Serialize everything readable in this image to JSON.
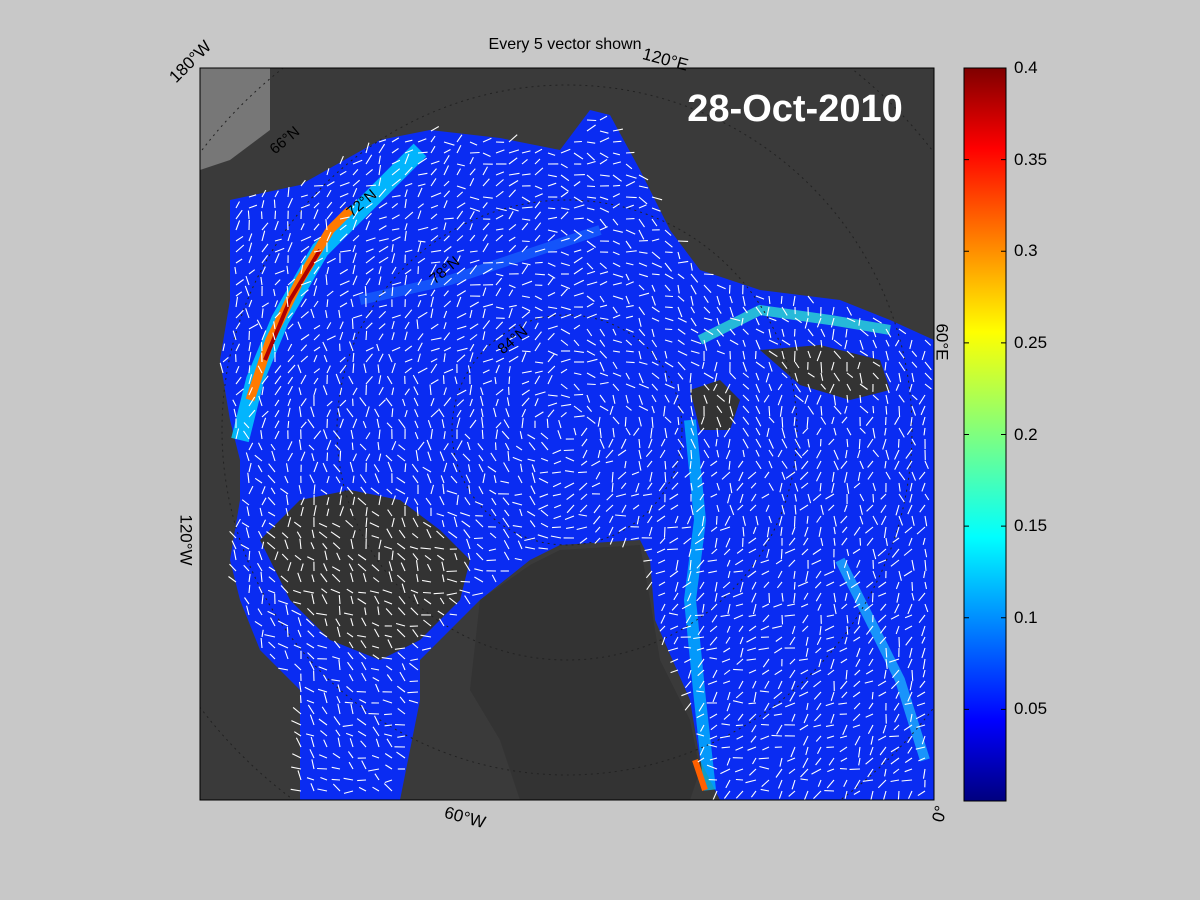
{
  "title": "Every 5 vector shown",
  "date": "28-Oct-2010",
  "longitude_labels": [
    "180°W",
    "120°E",
    "60°E",
    "0°",
    "60°W",
    "120°W"
  ],
  "latitude_labels": [
    "66°N",
    "72°N",
    "78°N",
    "84°N"
  ],
  "colorbar": {
    "min": 0,
    "max": 0.4,
    "ticks": [
      "0.4",
      "0.35",
      "0.3",
      "0.25",
      "0.2",
      "0.15",
      "0.1",
      "0.05"
    ],
    "colormap": "jet"
  },
  "colors": {
    "background": "#c8c8c8",
    "land": "#3a3a3a",
    "ocean_low": "#0a28f0",
    "vectors": "#ffffff"
  },
  "legend_icon": "arrow-vector-icon"
}
